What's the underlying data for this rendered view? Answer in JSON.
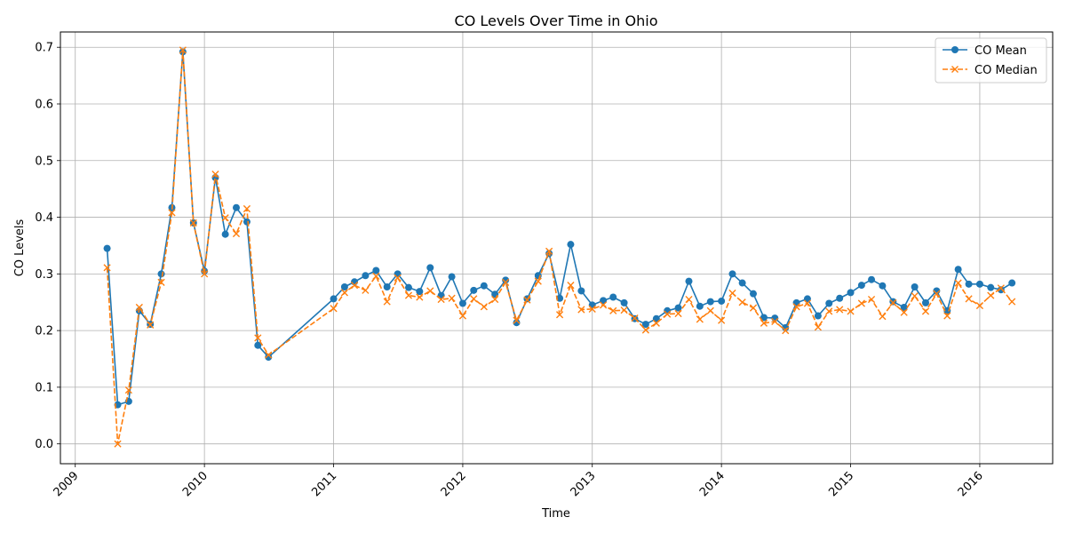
{
  "chart_data": {
    "type": "line",
    "title": "CO Levels Over Time in Ohio",
    "xlabel": "Time",
    "ylabel": "CO Levels",
    "xlim": [
      "2008-11-20",
      "2016-07-25"
    ],
    "ylim": [
      -0.035,
      0.727
    ],
    "x_ticks": [
      "2009",
      "2010",
      "2011",
      "2012",
      "2013",
      "2014",
      "2015",
      "2016"
    ],
    "x_tick_dates": [
      "2009-01-01",
      "2010-01-01",
      "2011-01-01",
      "2012-01-01",
      "2013-01-01",
      "2014-01-01",
      "2015-01-01",
      "2016-01-01"
    ],
    "y_ticks": [
      "0.0",
      "0.1",
      "0.2",
      "0.3",
      "0.4",
      "0.5",
      "0.6",
      "0.7"
    ],
    "grid": true,
    "legend_position": "top-right",
    "colors": {
      "mean": "#1f77b4",
      "median": "#ff7f0e"
    },
    "series": [
      {
        "name": "CO Mean",
        "style": "solid line with circle markers",
        "points": [
          [
            "2009-04-01",
            0.345
          ],
          [
            "2009-05-01",
            0.069
          ],
          [
            "2009-06-01",
            0.075
          ],
          [
            "2009-07-01",
            0.235
          ],
          [
            "2009-08-01",
            0.211
          ],
          [
            "2009-09-01",
            0.3
          ],
          [
            "2009-10-01",
            0.417
          ],
          [
            "2009-11-01",
            0.692
          ],
          [
            "2009-12-01",
            0.39
          ],
          [
            "2010-01-01",
            0.305
          ],
          [
            "2010-02-01",
            0.47
          ],
          [
            "2010-03-01",
            0.37
          ],
          [
            "2010-04-01",
            0.417
          ],
          [
            "2010-05-01",
            0.392
          ],
          [
            "2010-06-01",
            0.174
          ],
          [
            "2010-07-01",
            0.153
          ],
          [
            "2011-01-01",
            0.256
          ],
          [
            "2011-02-01",
            0.277
          ],
          [
            "2011-03-01",
            0.286
          ],
          [
            "2011-04-01",
            0.297
          ],
          [
            "2011-05-01",
            0.306
          ],
          [
            "2011-06-01",
            0.277
          ],
          [
            "2011-07-01",
            0.3
          ],
          [
            "2011-08-01",
            0.276
          ],
          [
            "2011-09-01",
            0.269
          ],
          [
            "2011-10-01",
            0.311
          ],
          [
            "2011-11-01",
            0.262
          ],
          [
            "2011-12-01",
            0.295
          ],
          [
            "2012-01-01",
            0.248
          ],
          [
            "2012-02-01",
            0.271
          ],
          [
            "2012-03-01",
            0.279
          ],
          [
            "2012-04-01",
            0.264
          ],
          [
            "2012-05-01",
            0.289
          ],
          [
            "2012-06-01",
            0.214
          ],
          [
            "2012-07-01",
            0.256
          ],
          [
            "2012-08-01",
            0.297
          ],
          [
            "2012-09-01",
            0.336
          ],
          [
            "2012-10-01",
            0.257
          ],
          [
            "2012-11-01",
            0.352
          ],
          [
            "2012-12-01",
            0.27
          ],
          [
            "2013-01-01",
            0.245
          ],
          [
            "2013-02-01",
            0.253
          ],
          [
            "2013-03-01",
            0.259
          ],
          [
            "2013-04-01",
            0.249
          ],
          [
            "2013-05-01",
            0.221
          ],
          [
            "2013-06-01",
            0.211
          ],
          [
            "2013-07-01",
            0.221
          ],
          [
            "2013-08-01",
            0.235
          ],
          [
            "2013-09-01",
            0.24
          ],
          [
            "2013-10-01",
            0.287
          ],
          [
            "2013-11-01",
            0.243
          ],
          [
            "2013-12-01",
            0.251
          ],
          [
            "2014-01-01",
            0.252
          ],
          [
            "2014-02-01",
            0.3
          ],
          [
            "2014-03-01",
            0.284
          ],
          [
            "2014-04-01",
            0.265
          ],
          [
            "2014-05-01",
            0.223
          ],
          [
            "2014-06-01",
            0.222
          ],
          [
            "2014-07-01",
            0.205
          ],
          [
            "2014-08-01",
            0.249
          ],
          [
            "2014-09-01",
            0.256
          ],
          [
            "2014-10-01",
            0.226
          ],
          [
            "2014-11-01",
            0.248
          ],
          [
            "2014-12-01",
            0.257
          ],
          [
            "2015-01-01",
            0.267
          ],
          [
            "2015-02-01",
            0.28
          ],
          [
            "2015-03-01",
            0.29
          ],
          [
            "2015-04-01",
            0.279
          ],
          [
            "2015-05-01",
            0.251
          ],
          [
            "2015-06-01",
            0.241
          ],
          [
            "2015-07-01",
            0.277
          ],
          [
            "2015-08-01",
            0.249
          ],
          [
            "2015-09-01",
            0.27
          ],
          [
            "2015-10-01",
            0.235
          ],
          [
            "2015-11-01",
            0.308
          ],
          [
            "2015-12-01",
            0.282
          ],
          [
            "2016-01-01",
            0.282
          ],
          [
            "2016-02-01",
            0.276
          ],
          [
            "2016-03-01",
            0.272
          ],
          [
            "2016-04-01",
            0.284
          ]
        ]
      },
      {
        "name": "CO Median",
        "style": "dashed line with x markers",
        "points": [
          [
            "2009-04-01",
            0.311
          ],
          [
            "2009-05-01",
            0.0
          ],
          [
            "2009-06-01",
            0.095
          ],
          [
            "2009-07-01",
            0.241
          ],
          [
            "2009-08-01",
            0.21
          ],
          [
            "2009-09-01",
            0.285
          ],
          [
            "2009-10-01",
            0.408
          ],
          [
            "2009-11-01",
            0.695
          ],
          [
            "2009-12-01",
            0.39
          ],
          [
            "2010-01-01",
            0.3
          ],
          [
            "2010-02-01",
            0.476
          ],
          [
            "2010-03-01",
            0.399
          ],
          [
            "2010-04-01",
            0.371
          ],
          [
            "2010-05-01",
            0.415
          ],
          [
            "2010-06-01",
            0.187
          ],
          [
            "2010-07-01",
            0.157
          ],
          [
            "2011-01-01",
            0.239
          ],
          [
            "2011-02-01",
            0.267
          ],
          [
            "2011-03-01",
            0.28
          ],
          [
            "2011-04-01",
            0.271
          ],
          [
            "2011-05-01",
            0.296
          ],
          [
            "2011-06-01",
            0.251
          ],
          [
            "2011-07-01",
            0.293
          ],
          [
            "2011-08-01",
            0.262
          ],
          [
            "2011-09-01",
            0.259
          ],
          [
            "2011-10-01",
            0.27
          ],
          [
            "2011-11-01",
            0.255
          ],
          [
            "2011-12-01",
            0.257
          ],
          [
            "2012-01-01",
            0.226
          ],
          [
            "2012-02-01",
            0.256
          ],
          [
            "2012-03-01",
            0.242
          ],
          [
            "2012-04-01",
            0.255
          ],
          [
            "2012-05-01",
            0.285
          ],
          [
            "2012-06-01",
            0.218
          ],
          [
            "2012-07-01",
            0.254
          ],
          [
            "2012-08-01",
            0.287
          ],
          [
            "2012-09-01",
            0.34
          ],
          [
            "2012-10-01",
            0.228
          ],
          [
            "2012-11-01",
            0.28
          ],
          [
            "2012-12-01",
            0.237
          ],
          [
            "2013-01-01",
            0.238
          ],
          [
            "2013-02-01",
            0.245
          ],
          [
            "2013-03-01",
            0.235
          ],
          [
            "2013-04-01",
            0.236
          ],
          [
            "2013-05-01",
            0.222
          ],
          [
            "2013-06-01",
            0.201
          ],
          [
            "2013-07-01",
            0.213
          ],
          [
            "2013-08-01",
            0.229
          ],
          [
            "2013-09-01",
            0.23
          ],
          [
            "2013-10-01",
            0.255
          ],
          [
            "2013-11-01",
            0.22
          ],
          [
            "2013-12-01",
            0.235
          ],
          [
            "2014-01-01",
            0.218
          ],
          [
            "2014-02-01",
            0.266
          ],
          [
            "2014-03-01",
            0.25
          ],
          [
            "2014-04-01",
            0.24
          ],
          [
            "2014-05-01",
            0.213
          ],
          [
            "2014-06-01",
            0.216
          ],
          [
            "2014-07-01",
            0.2
          ],
          [
            "2014-08-01",
            0.242
          ],
          [
            "2014-09-01",
            0.248
          ],
          [
            "2014-10-01",
            0.206
          ],
          [
            "2014-11-01",
            0.234
          ],
          [
            "2014-12-01",
            0.237
          ],
          [
            "2015-01-01",
            0.234
          ],
          [
            "2015-02-01",
            0.248
          ],
          [
            "2015-03-01",
            0.255
          ],
          [
            "2015-04-01",
            0.225
          ],
          [
            "2015-05-01",
            0.249
          ],
          [
            "2015-06-01",
            0.232
          ],
          [
            "2015-07-01",
            0.261
          ],
          [
            "2015-08-01",
            0.234
          ],
          [
            "2015-09-01",
            0.265
          ],
          [
            "2015-10-01",
            0.226
          ],
          [
            "2015-11-01",
            0.284
          ],
          [
            "2015-12-01",
            0.256
          ],
          [
            "2016-01-01",
            0.244
          ],
          [
            "2016-02-01",
            0.262
          ],
          [
            "2016-03-01",
            0.275
          ],
          [
            "2016-04-01",
            0.251
          ]
        ]
      }
    ]
  }
}
